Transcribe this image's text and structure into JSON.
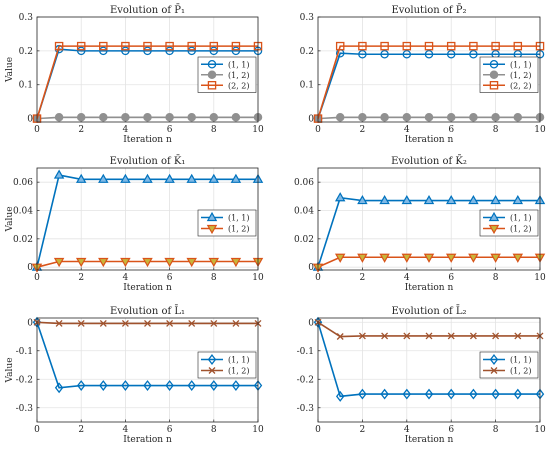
{
  "chart_data": [
    {
      "type": "line",
      "title": "Evolution of P̄₁",
      "xlabel": "Iteration n",
      "ylabel": "Value",
      "xlim": [
        0,
        10
      ],
      "ylim": [
        -0.01,
        0.3
      ],
      "xticks": [
        0,
        2,
        4,
        6,
        8,
        10
      ],
      "yticks": [
        0,
        0.1,
        0.2,
        0.3
      ],
      "ytick_labels": [
        "0",
        "0.1",
        "0.2",
        "0.3"
      ],
      "grid": true,
      "legend_position": "right",
      "x": [
        0,
        1,
        2,
        3,
        4,
        5,
        6,
        7,
        8,
        9,
        10
      ],
      "series": [
        {
          "name": "(1, 1)",
          "marker": "circle",
          "color": "#0072BD",
          "fill": "none",
          "values": [
            0,
            0.205,
            0.2,
            0.2,
            0.2,
            0.2,
            0.2,
            0.2,
            0.2,
            0.2,
            0.2
          ]
        },
        {
          "name": "(1, 2)",
          "marker": "circle",
          "color": "#909090",
          "fill": "#909090",
          "values": [
            0,
            0.004,
            0.004,
            0.004,
            0.004,
            0.004,
            0.004,
            0.004,
            0.004,
            0.004,
            0.004
          ]
        },
        {
          "name": "(2, 2)",
          "marker": "square",
          "color": "#D95319",
          "fill": "none",
          "values": [
            0,
            0.214,
            0.214,
            0.214,
            0.214,
            0.214,
            0.214,
            0.214,
            0.214,
            0.214,
            0.214
          ]
        }
      ]
    },
    {
      "type": "line",
      "title": "Evolution of P̄₂",
      "xlabel": "Iteration n",
      "ylabel": "",
      "xlim": [
        0,
        10
      ],
      "ylim": [
        -0.01,
        0.3
      ],
      "xticks": [
        0,
        2,
        4,
        6,
        8,
        10
      ],
      "yticks": [
        0,
        0.1,
        0.2,
        0.3
      ],
      "ytick_labels": [
        "0",
        "0.1",
        "0.2",
        "0.3"
      ],
      "grid": true,
      "legend_position": "right",
      "x": [
        0,
        1,
        2,
        3,
        4,
        5,
        6,
        7,
        8,
        9,
        10
      ],
      "series": [
        {
          "name": "(1, 1)",
          "marker": "circle",
          "color": "#0072BD",
          "fill": "none",
          "values": [
            0,
            0.193,
            0.19,
            0.19,
            0.19,
            0.19,
            0.19,
            0.19,
            0.19,
            0.19,
            0.19
          ]
        },
        {
          "name": "(1, 2)",
          "marker": "circle",
          "color": "#909090",
          "fill": "#909090",
          "values": [
            0,
            0.004,
            0.004,
            0.004,
            0.004,
            0.004,
            0.004,
            0.004,
            0.004,
            0.004,
            0.004
          ]
        },
        {
          "name": "(2, 2)",
          "marker": "square",
          "color": "#D95319",
          "fill": "none",
          "values": [
            0,
            0.214,
            0.214,
            0.214,
            0.214,
            0.214,
            0.214,
            0.214,
            0.214,
            0.214,
            0.214
          ]
        }
      ]
    },
    {
      "type": "line",
      "title": "Evolution of K̄₁",
      "xlabel": "Iteration n",
      "ylabel": "Value",
      "xlim": [
        0,
        10
      ],
      "ylim": [
        -0.002,
        0.07
      ],
      "xticks": [
        0,
        2,
        4,
        6,
        8,
        10
      ],
      "yticks": [
        0,
        0.02,
        0.04,
        0.06
      ],
      "ytick_labels": [
        "0",
        "0.02",
        "0.04",
        "0.06"
      ],
      "grid": true,
      "legend_position": "right",
      "x": [
        0,
        1,
        2,
        3,
        4,
        5,
        6,
        7,
        8,
        9,
        10
      ],
      "series": [
        {
          "name": "(1, 1)",
          "marker": "triangle-up",
          "color": "#0072BD",
          "fill": "#7FB9E6",
          "values": [
            0,
            0.065,
            0.062,
            0.062,
            0.062,
            0.062,
            0.062,
            0.062,
            0.062,
            0.062,
            0.062
          ]
        },
        {
          "name": "(1, 2)",
          "marker": "triangle-down",
          "color": "#D95319",
          "fill": "#C9B53A",
          "values": [
            0,
            0.004,
            0.004,
            0.004,
            0.004,
            0.004,
            0.004,
            0.004,
            0.004,
            0.004,
            0.004
          ]
        }
      ]
    },
    {
      "type": "line",
      "title": "Evolution of K̄₂",
      "xlabel": "Iteration n",
      "ylabel": "",
      "xlim": [
        0,
        10
      ],
      "ylim": [
        -0.002,
        0.07
      ],
      "xticks": [
        0,
        2,
        4,
        6,
        8,
        10
      ],
      "yticks": [
        0,
        0.02,
        0.04,
        0.06
      ],
      "ytick_labels": [
        "0",
        "0.02",
        "0.04",
        "0.06"
      ],
      "grid": true,
      "legend_position": "right",
      "x": [
        0,
        1,
        2,
        3,
        4,
        5,
        6,
        7,
        8,
        9,
        10
      ],
      "series": [
        {
          "name": "(1, 1)",
          "marker": "triangle-up",
          "color": "#0072BD",
          "fill": "#7FB9E6",
          "values": [
            0,
            0.049,
            0.047,
            0.047,
            0.047,
            0.047,
            0.047,
            0.047,
            0.047,
            0.047,
            0.047
          ]
        },
        {
          "name": "(1, 2)",
          "marker": "triangle-down",
          "color": "#D95319",
          "fill": "#C9B53A",
          "values": [
            0,
            0.007,
            0.007,
            0.007,
            0.007,
            0.007,
            0.007,
            0.007,
            0.007,
            0.007,
            0.007
          ]
        }
      ]
    },
    {
      "type": "line",
      "title": "Evolution of L̄₁",
      "xlabel": "Iteration n",
      "ylabel": "Value",
      "xlim": [
        0,
        10
      ],
      "ylim": [
        -0.35,
        0.015
      ],
      "xticks": [
        0,
        2,
        4,
        6,
        8,
        10
      ],
      "yticks": [
        0,
        -0.1,
        -0.2,
        -0.3
      ],
      "ytick_labels": [
        "0",
        "-0.1",
        "-0.2",
        "-0.3"
      ],
      "grid": true,
      "legend_position": "right",
      "x": [
        0,
        1,
        2,
        3,
        4,
        5,
        6,
        7,
        8,
        9,
        10
      ],
      "series": [
        {
          "name": "(1, 1)",
          "marker": "diamond",
          "color": "#0072BD",
          "fill": "none",
          "values": [
            0,
            -0.23,
            -0.222,
            -0.222,
            -0.222,
            -0.222,
            -0.222,
            -0.222,
            -0.222,
            -0.222,
            -0.222
          ]
        },
        {
          "name": "(1, 2)",
          "marker": "x",
          "color": "#A0522D",
          "fill": "none",
          "values": [
            0,
            -0.004,
            -0.004,
            -0.004,
            -0.004,
            -0.004,
            -0.004,
            -0.004,
            -0.004,
            -0.004,
            -0.004
          ]
        }
      ]
    },
    {
      "type": "line",
      "title": "Evolution of L̄₂",
      "xlabel": "Iteration n",
      "ylabel": "",
      "xlim": [
        0,
        10
      ],
      "ylim": [
        -0.35,
        0.015
      ],
      "xticks": [
        0,
        2,
        4,
        6,
        8,
        10
      ],
      "yticks": [
        0,
        -0.1,
        -0.2,
        -0.3
      ],
      "ytick_labels": [
        "0",
        "-0.1",
        "-0.2",
        "-0.3"
      ],
      "grid": true,
      "legend_position": "right",
      "x": [
        0,
        1,
        2,
        3,
        4,
        5,
        6,
        7,
        8,
        9,
        10
      ],
      "series": [
        {
          "name": "(1, 1)",
          "marker": "diamond",
          "color": "#0072BD",
          "fill": "none",
          "values": [
            0,
            -0.26,
            -0.252,
            -0.252,
            -0.252,
            -0.252,
            -0.252,
            -0.252,
            -0.252,
            -0.252,
            -0.252
          ]
        },
        {
          "name": "(1, 2)",
          "marker": "x",
          "color": "#A0522D",
          "fill": "none",
          "values": [
            0,
            -0.05,
            -0.048,
            -0.048,
            -0.048,
            -0.048,
            -0.048,
            -0.048,
            -0.048,
            -0.048,
            -0.048
          ]
        }
      ]
    }
  ]
}
